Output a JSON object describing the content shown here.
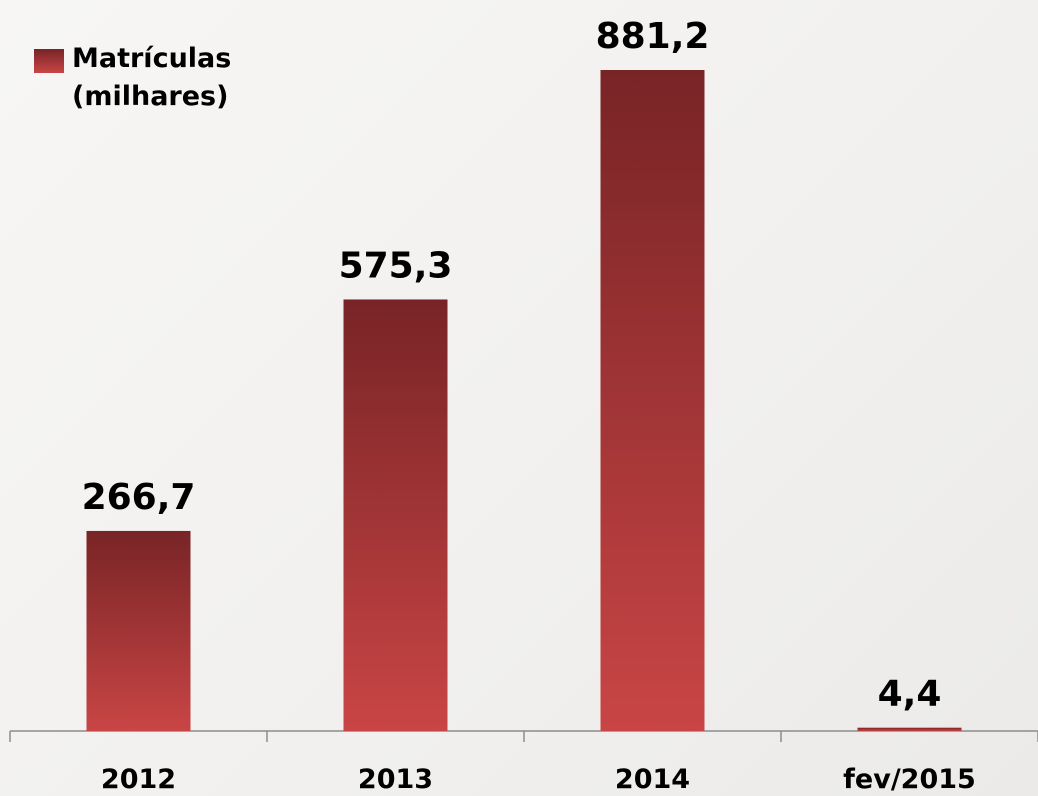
{
  "chart_data": {
    "type": "bar",
    "categories": [
      "2012",
      "2013",
      "2014",
      "fev/2015"
    ],
    "series": [
      {
        "name": "Matrículas (milhares)",
        "color": "#c94545",
        "values": [
          266.7,
          575.3,
          881.2,
          4.4
        ],
        "value_labels": [
          "266,7",
          "575,3",
          "881,2",
          "4,4"
        ]
      }
    ]
  }
}
